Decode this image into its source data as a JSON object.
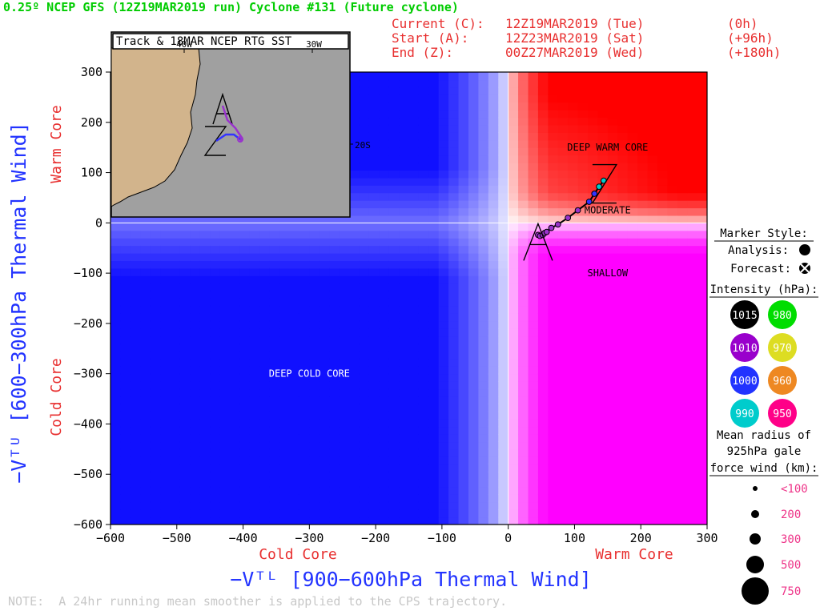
{
  "title": "0.25º NCEP GFS (12Z19MAR2019 run) Cyclone #131 (Future cyclone)",
  "times": {
    "current_label": "Current (C):",
    "current_date": "12Z19MAR2019 (Tue)",
    "current_offset": "(0h)",
    "start_label": "Start (A):",
    "start_date": "12Z23MAR2019 (Sat)",
    "start_offset": "(+96h)",
    "end_label": "End (Z):",
    "end_date": "00Z27MAR2019 (Wed)",
    "end_offset": "(+180h)"
  },
  "inset": {
    "title": "Track & 18MAR NCEP RTG SST",
    "lon_labels": [
      "40W",
      "30W"
    ],
    "lat_label": "20S",
    "land_color": "#d2b48c",
    "sea_color": "#a0a0a0",
    "track_colors": [
      "#9933cc",
      "#3333ff"
    ]
  },
  "chart_data": {
    "type": "scatter",
    "xlabel": "−Vᵀᴸ [900−600hPa Thermal Wind]",
    "ylabel": "−Vᵀᵁ [600−300hPa Thermal Wind]",
    "x_left_label": "Cold Core",
    "x_right_label": "Warm Core",
    "y_top_label": "Warm Core",
    "y_bottom_label": "Cold Core",
    "xlim": [
      -600,
      300
    ],
    "ylim": [
      -600,
      300
    ],
    "xticks": [
      -600,
      -500,
      -400,
      -300,
      -200,
      -100,
      0,
      100,
      200,
      300
    ],
    "yticks": [
      300,
      200,
      100,
      0,
      -100,
      -200,
      -300,
      -400,
      -500,
      -600
    ],
    "quadrant_labels": [
      {
        "text": "DEEP WARM CORE",
        "x": 150,
        "y": 150
      },
      {
        "text": "MODERATE",
        "x": 150,
        "y": 25
      },
      {
        "text": "SHALLOW",
        "x": 150,
        "y": -100
      },
      {
        "text": "DEEP COLD CORE",
        "x": -300,
        "y": -300
      }
    ],
    "colors": {
      "cold": "#1010ff",
      "warm": "#ff0000",
      "mixed": "#ff00ff"
    },
    "track": [
      {
        "x": 45,
        "y": -24,
        "color": "#9933cc"
      },
      {
        "x": 48,
        "y": -26,
        "color": "#9933cc"
      },
      {
        "x": 52,
        "y": -24,
        "color": "#9933cc"
      },
      {
        "x": 55,
        "y": -20,
        "color": "#9933cc"
      },
      {
        "x": 58,
        "y": -18,
        "color": "#9933cc"
      },
      {
        "x": 65,
        "y": -10,
        "color": "#9933cc"
      },
      {
        "x": 75,
        "y": -3,
        "color": "#9933cc"
      },
      {
        "x": 90,
        "y": 10,
        "color": "#9933cc"
      },
      {
        "x": 105,
        "y": 25,
        "color": "#9933cc"
      },
      {
        "x": 122,
        "y": 42,
        "color": "#3333ff"
      },
      {
        "x": 130,
        "y": 58,
        "color": "#3333ff"
      },
      {
        "x": 137,
        "y": 72,
        "color": "#00cccc"
      },
      {
        "x": 144,
        "y": 84,
        "color": "#00cccc"
      }
    ],
    "start_point": {
      "x": 45,
      "y": -24
    },
    "end_point": {
      "x": 144,
      "y": 84
    }
  },
  "legend": {
    "marker_title": "Marker Style:",
    "analysis_label": "Analysis:",
    "forecast_label": "Forecast:",
    "intensity_title": "Intensity (hPa):",
    "intensities": [
      {
        "value": "1015",
        "color": "#000000"
      },
      {
        "value": "980",
        "color": "#00dd00"
      },
      {
        "value": "1010",
        "color": "#9900cc"
      },
      {
        "value": "970",
        "color": "#dddd22"
      },
      {
        "value": "1000",
        "color": "#2233ff"
      },
      {
        "value": "960",
        "color": "#ee8822"
      },
      {
        "value": "990",
        "color": "#00cccc"
      },
      {
        "value": "950",
        "color": "#ff0088"
      }
    ],
    "radius_title": [
      "Mean radius of",
      "925hPa gale",
      "force wind (km):"
    ],
    "radii": [
      "<100",
      "200",
      "300",
      "500",
      "750"
    ]
  },
  "note": "NOTE:  A 24hr running mean smoother is applied to the CPS trajectory."
}
